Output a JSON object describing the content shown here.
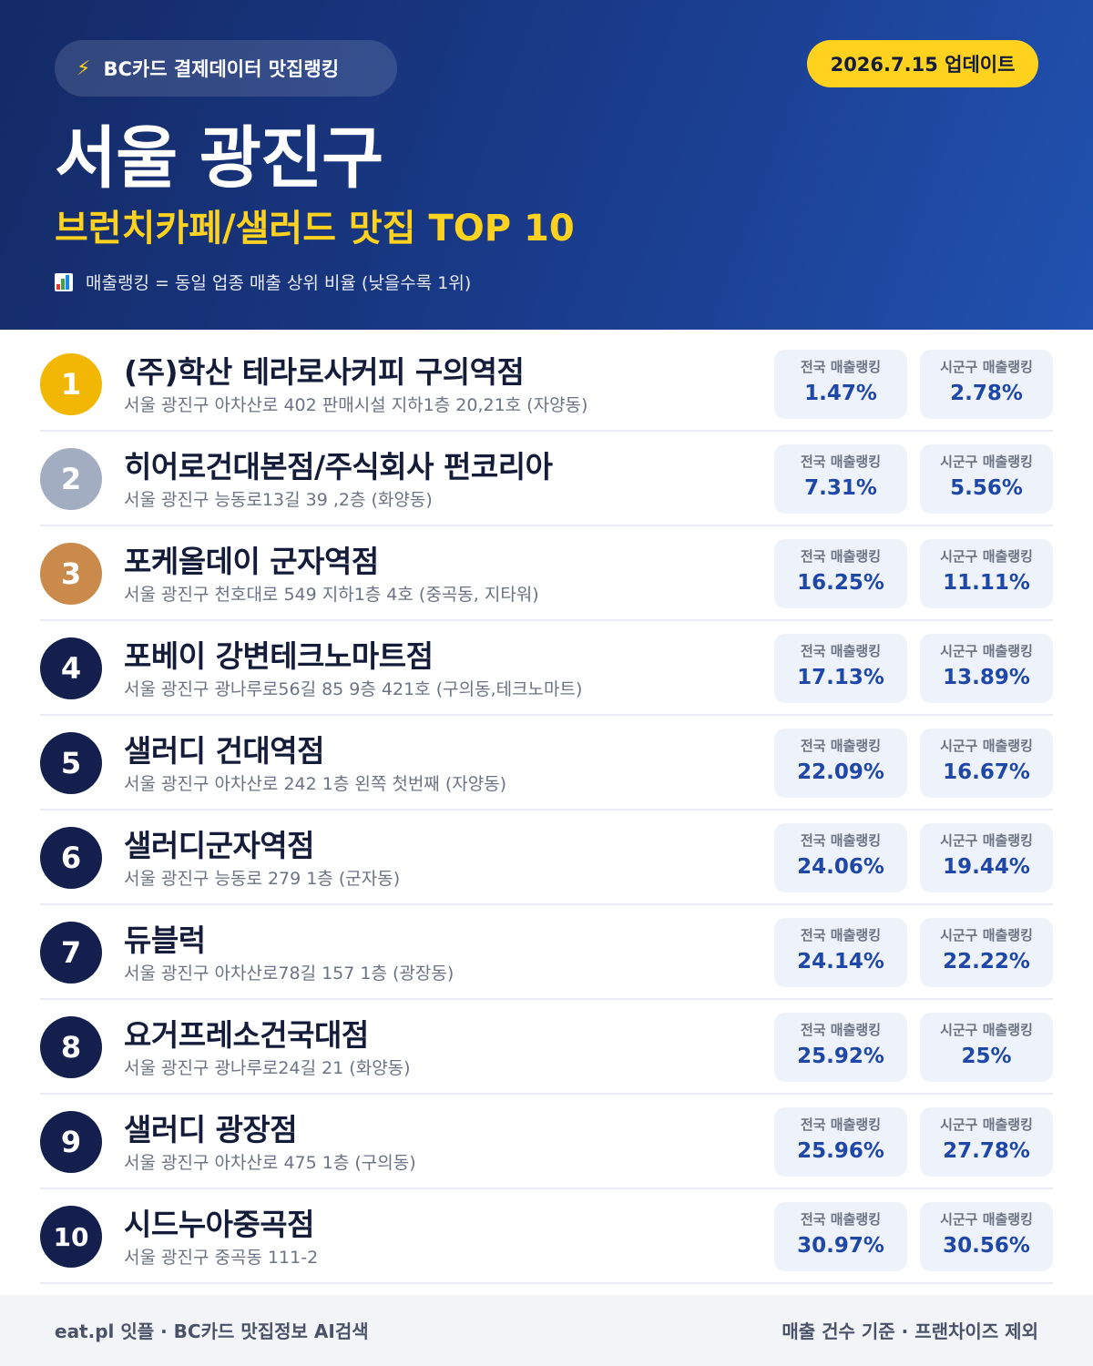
{
  "header": {
    "source_label": "BC카드 결제데이터 맛집랭킹",
    "update_label": "2026.7.15 업데이트",
    "region": "서울 광진구",
    "category": "브런치카페/샐러드 맛집 TOP 10",
    "legend": "매출랭킹 = 동일 업종 매출 상위 비율 (낮을수록 1위)",
    "icons": {
      "source": "lightning-icon",
      "legend": "bar-chart-icon"
    },
    "colors": {
      "accent": "#ffd21f",
      "background": "#1a3c8c"
    }
  },
  "stat_labels": {
    "national": "전국 매출랭킹",
    "district": "시군구 매출랭킹"
  },
  "rank_colors": {
    "gold": "#f2b705",
    "silver": "#a3adc2",
    "bronze": "#c98a4b",
    "default": "#141f4d"
  },
  "restaurants": [
    {
      "rank": "1",
      "name": "(주)학산 테라로사커피 구의역점",
      "address": "서울 광진구 아차산로 402 판매시설 지하1층 20,21호 (자양동)",
      "national": "1.47%",
      "district": "2.78%"
    },
    {
      "rank": "2",
      "name": "히어로건대본점/주식회사 펀코리아",
      "address": "서울 광진구 능동로13길 39 ,2층 (화양동)",
      "national": "7.31%",
      "district": "5.56%"
    },
    {
      "rank": "3",
      "name": "포케올데이 군자역점",
      "address": "서울 광진구 천호대로 549 지하1층 4호 (중곡동, 지타워)",
      "national": "16.25%",
      "district": "11.11%"
    },
    {
      "rank": "4",
      "name": "포베이 강변테크노마트점",
      "address": "서울 광진구 광나루로56길 85 9층 421호 (구의동,테크노마트)",
      "national": "17.13%",
      "district": "13.89%"
    },
    {
      "rank": "5",
      "name": "샐러디 건대역점",
      "address": "서울 광진구 아차산로 242 1층 왼쪽 첫번째 (자양동)",
      "national": "22.09%",
      "district": "16.67%"
    },
    {
      "rank": "6",
      "name": "샐러디군자역점",
      "address": "서울 광진구 능동로 279 1층 (군자동)",
      "national": "24.06%",
      "district": "19.44%"
    },
    {
      "rank": "7",
      "name": "듀블럭",
      "address": "서울 광진구 아차산로78길 157 1층 (광장동)",
      "national": "24.14%",
      "district": "22.22%"
    },
    {
      "rank": "8",
      "name": "요거프레소건국대점",
      "address": "서울 광진구 광나루로24길 21 (화양동)",
      "national": "25.92%",
      "district": "25%"
    },
    {
      "rank": "9",
      "name": "샐러디 광장점",
      "address": "서울 광진구 아차산로 475 1층 (구의동)",
      "national": "25.96%",
      "district": "27.78%"
    },
    {
      "rank": "10",
      "name": "시드누아중곡점",
      "address": "서울 광진구 중곡동 111-2",
      "national": "30.97%",
      "district": "30.56%"
    }
  ],
  "footer": {
    "left": "eat.pl 잇플 · BC카드 맛집정보 AI검색",
    "right": "매출 건수 기준 · 프랜차이즈 제외"
  }
}
